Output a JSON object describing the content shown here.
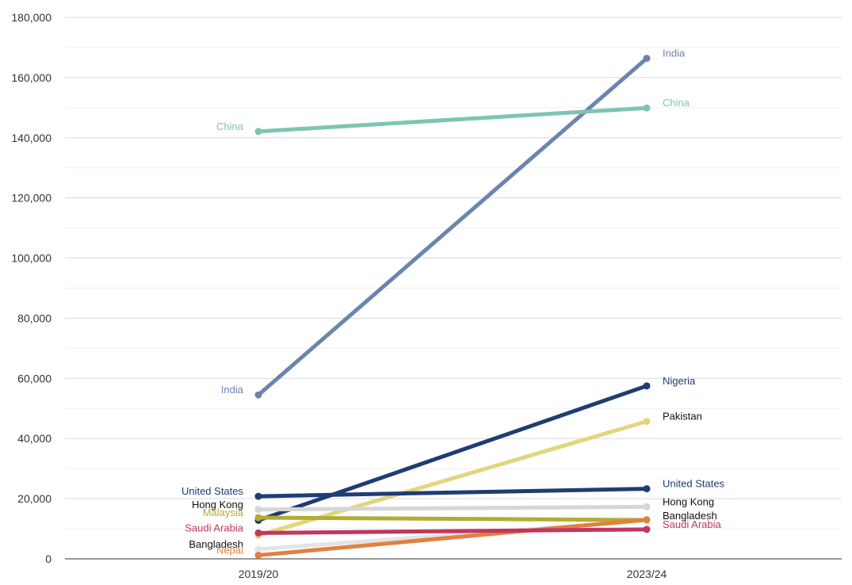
{
  "chart_data": {
    "type": "line",
    "title": "",
    "xlabel": "",
    "ylabel": "",
    "categories": [
      "2019/20",
      "2023/24"
    ],
    "ylim": [
      0,
      180000
    ],
    "y_ticks": [
      0,
      20000,
      40000,
      60000,
      80000,
      100000,
      120000,
      140000,
      160000,
      180000
    ],
    "y_tick_labels": [
      "0",
      "20,000",
      "40,000",
      "60,000",
      "80,000",
      "100,000",
      "120,000",
      "140,000",
      "160,000",
      "180,000"
    ],
    "grid": true,
    "legend": "none",
    "series": [
      {
        "name": "India",
        "values": [
          54500,
          166400
        ],
        "color": "#6b84b0",
        "label_start": "India",
        "label_end": "India"
      },
      {
        "name": "China",
        "values": [
          142100,
          149900
        ],
        "color": "#7ec4b5",
        "label_start": "China",
        "label_end": "China"
      },
      {
        "name": "Nigeria",
        "values": [
          12800,
          57500
        ],
        "color": "#1f3c73",
        "label_start": "",
        "label_end": "Nigeria"
      },
      {
        "name": "Pakistan",
        "values": [
          7800,
          45700
        ],
        "color": "#e3d57c",
        "label_start": "",
        "label_end": "Pakistan"
      },
      {
        "name": "United States",
        "values": [
          20800,
          23300
        ],
        "color": "#1f3c73",
        "label_start": "United States",
        "label_end": "United States"
      },
      {
        "name": "Hong Kong",
        "values": [
          16400,
          17300
        ],
        "color": "#d6d6d6",
        "label_start": "Hong Kong",
        "label_end": "Hong Kong"
      },
      {
        "name": "Malaysia",
        "values": [
          13700,
          12900
        ],
        "color": "#b3ab35",
        "label_start": "Malaysia",
        "label_end": ""
      },
      {
        "name": "Bangladesh",
        "values": [
          3200,
          12700
        ],
        "color": "#e4e4e4",
        "label_start": "Bangladesh",
        "label_end": "Bangladesh"
      },
      {
        "name": "Nepal",
        "values": [
          1200,
          13000
        ],
        "color": "#e0813d",
        "label_start": "Nepal",
        "label_end": ""
      },
      {
        "name": "Saudi Arabia",
        "values": [
          8600,
          9800
        ],
        "color": "#c2365e",
        "label_start": "Saudi Arabia",
        "label_end": "Saudi Arabia"
      }
    ],
    "label_colors": {
      "India": "#6b84b0",
      "China": "#7ec4b5",
      "Nigeria": "#1f3c73",
      "Pakistan": "#111111",
      "United States": "#1f3c73",
      "Hong Kong": "#111111",
      "Malaysia": "#b3ab35",
      "Bangladesh": "#111111",
      "Nepal": "#e0813d",
      "Saudi Arabia": "#c2365e"
    }
  }
}
